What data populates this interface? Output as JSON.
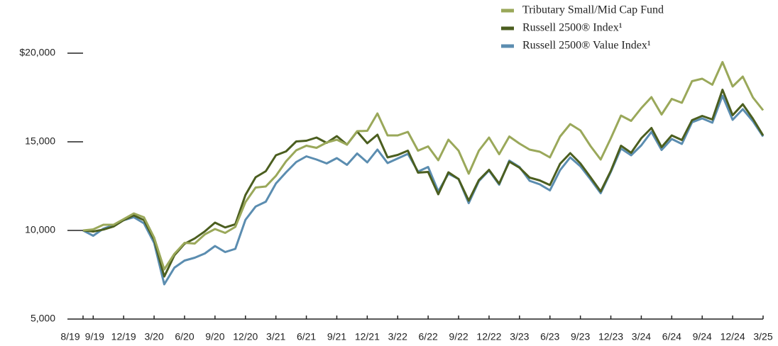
{
  "chart_data": {
    "type": "line",
    "categories": [
      "8/19",
      "9/19",
      null,
      null,
      "12/19",
      null,
      null,
      "3/20",
      null,
      null,
      "6/20",
      null,
      null,
      "9/20",
      null,
      null,
      "12/20",
      null,
      null,
      "3/21",
      null,
      null,
      "6/21",
      null,
      null,
      "9/21",
      null,
      null,
      "12/21",
      null,
      null,
      "3/22",
      null,
      null,
      "6/22",
      null,
      null,
      "9/22",
      null,
      null,
      "12/22",
      null,
      null,
      "3/23",
      null,
      null,
      "6/23",
      null,
      null,
      "9/23",
      null,
      null,
      "12/23",
      null,
      null,
      "3/24",
      null,
      null,
      "6/24",
      null,
      null,
      "9/24",
      null,
      null,
      "12/24",
      null,
      null,
      "3/25"
    ],
    "series": [
      {
        "name": "Tributary Small/Mid Cap Fund",
        "color": "#9aa85a",
        "values": [
          10000,
          10060,
          10320,
          10320,
          10640,
          10960,
          10740,
          9600,
          7800,
          8680,
          9300,
          9260,
          9780,
          10080,
          9860,
          10200,
          11600,
          12420,
          12480,
          13080,
          13900,
          14520,
          14780,
          14660,
          14960,
          15120,
          14840,
          15600,
          15620,
          16600,
          15360,
          15360,
          15560,
          14500,
          14740,
          13960,
          15120,
          14500,
          13200,
          14500,
          15240,
          14300,
          15300,
          14900,
          14560,
          14440,
          14120,
          15300,
          16000,
          15640,
          14760,
          14000,
          15200,
          16480,
          16180,
          16900,
          17520,
          16540,
          17420,
          17200,
          18420,
          18560,
          18220,
          19500,
          18120,
          18680,
          17500,
          16780
        ]
      },
      {
        "name": "Russell 2500® Index¹",
        "color": "#4b5e1f",
        "values": [
          10000,
          9940,
          10050,
          10220,
          10580,
          10850,
          10580,
          9480,
          7400,
          8600,
          9250,
          9550,
          9950,
          10440,
          10170,
          10350,
          12000,
          13000,
          13340,
          14240,
          14460,
          15020,
          15060,
          15240,
          14940,
          15320,
          14840,
          15580,
          14920,
          15400,
          14120,
          14260,
          14500,
          13260,
          13300,
          12040,
          13280,
          12900,
          11680,
          12840,
          13420,
          12640,
          13880,
          13540,
          12980,
          12820,
          12560,
          13760,
          14360,
          13780,
          13000,
          12200,
          13360,
          14780,
          14380,
          15200,
          15780,
          14700,
          15360,
          15100,
          16220,
          16460,
          16260,
          17940,
          16500,
          17120,
          16300,
          15360
        ]
      },
      {
        "name": "Russell 2500® Value Index¹",
        "color": "#5b8db0",
        "values": [
          10000,
          9700,
          10100,
          10300,
          10580,
          10750,
          10400,
          9300,
          6960,
          7900,
          8300,
          8460,
          8700,
          9120,
          8780,
          8960,
          10600,
          11350,
          11620,
          12650,
          13280,
          13860,
          14180,
          14000,
          13780,
          14080,
          13700,
          14340,
          13840,
          14560,
          13800,
          14060,
          14320,
          13320,
          13580,
          12200,
          13200,
          12900,
          11540,
          12780,
          13380,
          12580,
          13940,
          13580,
          12800,
          12600,
          12260,
          13400,
          14120,
          13620,
          12880,
          12100,
          13300,
          14620,
          14240,
          14800,
          15560,
          14540,
          15160,
          14880,
          16100,
          16320,
          16080,
          17600,
          16240,
          16840,
          16160,
          15300
        ]
      }
    ],
    "ylim": [
      5000,
      20000
    ],
    "yticks": [
      {
        "value": 5000,
        "label": "5,000"
      },
      {
        "value": 10000,
        "label": "10,000"
      },
      {
        "value": 15000,
        "label": "15,000"
      },
      {
        "value": 20000,
        "label": "$20,000"
      }
    ]
  }
}
